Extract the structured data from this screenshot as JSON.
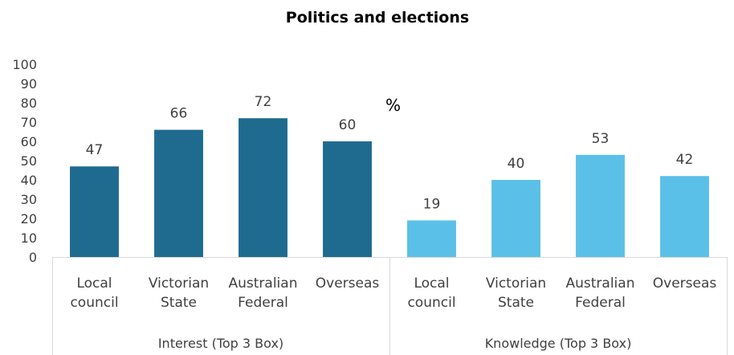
{
  "chart_data": {
    "type": "bar",
    "title": "Politics and elections",
    "unit_label": "%",
    "ylim": [
      0,
      100
    ],
    "yticks": [
      0,
      10,
      20,
      30,
      40,
      50,
      60,
      70,
      80,
      90,
      100
    ],
    "grid": false,
    "legend": "none",
    "groups": [
      {
        "name": "Interest (Top 3 Box)",
        "color": "#1f6b8f",
        "categories": [
          "Local council",
          "Victorian State",
          "Australian Federal",
          "Overseas"
        ],
        "values": [
          47,
          66,
          72,
          60
        ]
      },
      {
        "name": "Knowledge (Top 3 Box)",
        "color": "#5bc0e8",
        "categories": [
          "Local council",
          "Victorian State",
          "Australian Federal",
          "Overseas"
        ],
        "values": [
          19,
          40,
          53,
          42
        ]
      }
    ]
  }
}
